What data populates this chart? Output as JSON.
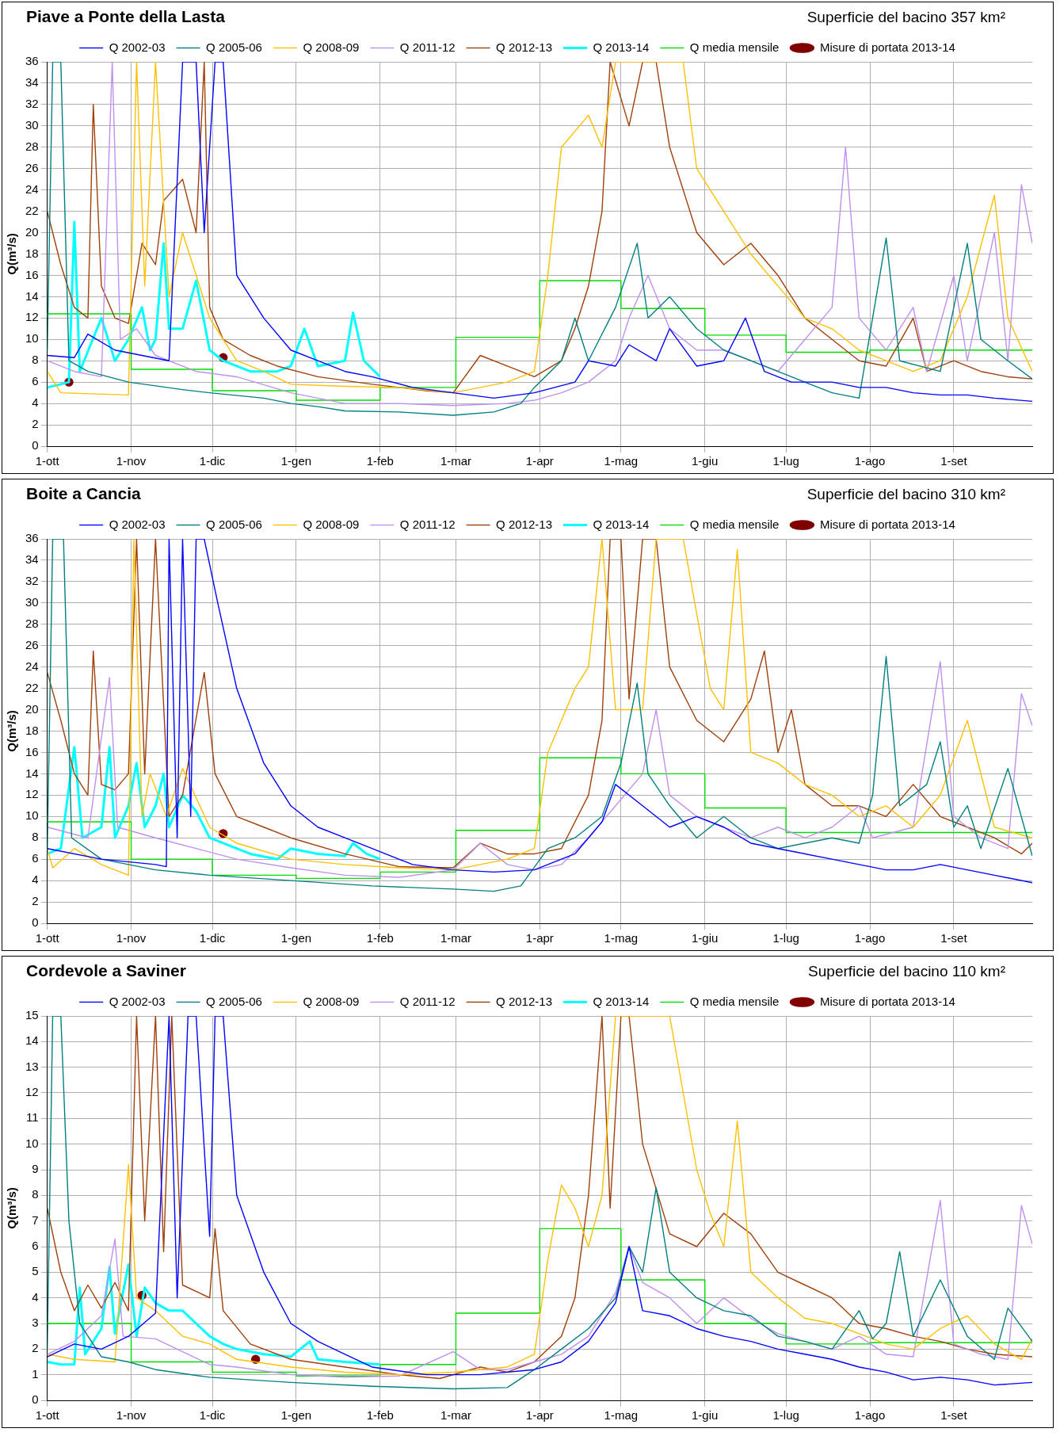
{
  "chart_data": [
    {
      "type": "line",
      "title": "Piave a Ponte della Lasta",
      "subtitle": "Superficie del bacino 357 km²",
      "ylabel": "Q(m³/s)",
      "xlim": [
        "2013-10-01",
        "2014-09-30"
      ],
      "xticks": [
        {
          "value": "2013-10-01",
          "label": "1-ott"
        },
        {
          "value": "2013-11-01",
          "label": "1-nov"
        },
        {
          "value": "2013-12-01",
          "label": "1-dic"
        },
        {
          "value": "2014-01-01",
          "label": "1-gen"
        },
        {
          "value": "2014-02-01",
          "label": "1-feb"
        },
        {
          "value": "2014-03-01",
          "label": "1-mar"
        },
        {
          "value": "2014-04-01",
          "label": "1-apr"
        },
        {
          "value": "2014-05-01",
          "label": "1-mag"
        },
        {
          "value": "2014-06-01",
          "label": "1-giu"
        },
        {
          "value": "2014-07-01",
          "label": "1-lug"
        },
        {
          "value": "2014-08-01",
          "label": "1-ago"
        },
        {
          "value": "2014-09-01",
          "label": "1-set"
        }
      ],
      "ylim": [
        0,
        36
      ],
      "yticks": [
        0,
        2,
        4,
        6,
        8,
        10,
        12,
        14,
        16,
        18,
        20,
        22,
        24,
        26,
        28,
        30,
        32,
        34,
        36
      ],
      "grid": true,
      "legend": "top",
      "marker": "none",
      "series": [
        {
          "name": "Q 2002-03",
          "color": "#0000ff",
          "x": [
            "2013-10-01",
            "2013-10-11",
            "2013-10-16",
            "2013-10-26",
            "2013-11-05",
            "2013-11-15",
            "2013-11-20",
            "2013-11-25",
            "2013-11-28",
            "2013-12-02",
            "2013-12-05",
            "2013-12-10",
            "2013-12-20",
            "2013-12-30",
            "2014-01-09",
            "2014-01-19",
            "2014-01-29",
            "2014-02-13",
            "2014-02-28",
            "2014-03-15",
            "2014-03-30",
            "2014-04-14",
            "2014-04-19",
            "2014-04-29",
            "2014-05-04",
            "2014-05-14",
            "2014-05-19",
            "2014-05-29",
            "2014-06-08",
            "2014-06-16",
            "2014-06-23",
            "2014-07-03",
            "2014-07-18",
            "2014-07-28",
            "2014-08-07",
            "2014-08-17",
            "2014-08-27",
            "2014-09-06",
            "2014-09-16",
            "2014-09-30"
          ],
          "values": [
            8.5,
            8.3,
            10.5,
            9,
            8.5,
            8,
            36,
            36,
            20,
            36,
            36,
            16,
            12,
            9,
            8,
            7,
            6.5,
            5.5,
            5,
            4.5,
            5,
            6,
            8,
            7.5,
            9.5,
            8,
            11,
            7.5,
            8,
            12,
            7,
            6,
            6,
            5.5,
            5.5,
            5,
            4.8,
            4.8,
            4.5,
            4.2
          ]
        },
        {
          "name": "Q 2005-06",
          "color": "#008080",
          "x": [
            "2013-10-01",
            "2013-10-03",
            "2013-10-06",
            "2013-10-09",
            "2013-10-16",
            "2013-10-31",
            "2013-11-20",
            "2013-11-30",
            "2013-12-20",
            "2013-12-30",
            "2014-01-09",
            "2014-01-19",
            "2014-02-08",
            "2014-02-28",
            "2014-03-15",
            "2014-03-25",
            "2014-03-30",
            "2014-04-09",
            "2014-04-14",
            "2014-04-19",
            "2014-04-29",
            "2014-05-07",
            "2014-05-11",
            "2014-05-19",
            "2014-05-29",
            "2014-06-08",
            "2014-06-18",
            "2014-06-28",
            "2014-07-18",
            "2014-07-28",
            "2014-08-07",
            "2014-08-12",
            "2014-08-27",
            "2014-09-06",
            "2014-09-11",
            "2014-09-21",
            "2014-09-30"
          ],
          "values": [
            9,
            36,
            36,
            8,
            7,
            6,
            5.3,
            5,
            4.5,
            4,
            3.7,
            3.3,
            3.2,
            2.9,
            3.2,
            4,
            5.5,
            8,
            12,
            8,
            13,
            19,
            12,
            14,
            11,
            9,
            8,
            7,
            5,
            4.5,
            19.5,
            8,
            7,
            19,
            10,
            8,
            6.3
          ]
        },
        {
          "name": "Q 2008-09",
          "color": "#ffc000",
          "x": [
            "2013-10-01",
            "2013-10-06",
            "2013-10-31",
            "2013-11-03",
            "2013-11-06",
            "2013-11-10",
            "2013-11-15",
            "2013-11-20",
            "2013-11-30",
            "2013-12-10",
            "2013-12-20",
            "2013-12-30",
            "2014-01-19",
            "2014-02-08",
            "2014-02-28",
            "2014-03-20",
            "2014-03-30",
            "2014-04-04",
            "2014-04-09",
            "2014-04-19",
            "2014-04-24",
            "2014-04-29",
            "2014-05-09",
            "2014-05-24",
            "2014-05-29",
            "2014-06-08",
            "2014-06-18",
            "2014-06-28",
            "2014-07-08",
            "2014-07-18",
            "2014-07-28",
            "2014-08-07",
            "2014-08-17",
            "2014-08-27",
            "2014-09-06",
            "2014-09-16",
            "2014-09-21",
            "2014-09-30"
          ],
          "values": [
            7,
            5,
            4.8,
            36,
            15,
            36,
            14,
            20,
            12,
            8,
            7,
            5.8,
            5.6,
            5.5,
            5,
            6,
            7,
            16,
            28,
            31,
            28,
            36,
            36,
            36,
            26,
            22,
            18,
            15,
            12,
            11,
            9,
            8,
            7,
            8,
            14,
            23.5,
            12,
            7
          ]
        },
        {
          "name": "Q 2011-12",
          "color": "#c090f0",
          "x": [
            "2013-10-01",
            "2013-10-11",
            "2013-10-21",
            "2013-10-25",
            "2013-10-28",
            "2013-11-03",
            "2013-11-10",
            "2013-11-25",
            "2013-12-10",
            "2013-12-30",
            "2014-01-19",
            "2014-02-08",
            "2014-02-28",
            "2014-03-20",
            "2014-03-30",
            "2014-04-09",
            "2014-04-19",
            "2014-04-29",
            "2014-05-04",
            "2014-05-11",
            "2014-05-19",
            "2014-05-29",
            "2014-06-08",
            "2014-06-18",
            "2014-06-28",
            "2014-07-08",
            "2014-07-18",
            "2014-07-23",
            "2014-07-28",
            "2014-08-07",
            "2014-08-17",
            "2014-08-22",
            "2014-09-01",
            "2014-09-06",
            "2014-09-16",
            "2014-09-21",
            "2014-09-26",
            "2014-09-30"
          ],
          "values": [
            8,
            7,
            6.5,
            36,
            10,
            11,
            8.5,
            7,
            6.5,
            5,
            4,
            4,
            3.8,
            4,
            4.3,
            5,
            6,
            8,
            12,
            16,
            11,
            9,
            9,
            8,
            7,
            10,
            13,
            28,
            12,
            9,
            13,
            7,
            16,
            8,
            20,
            8,
            24.5,
            19
          ]
        },
        {
          "name": "Q 2012-13",
          "color": "#a0400a",
          "x": [
            "2013-10-01",
            "2013-10-06",
            "2013-10-11",
            "2013-10-16",
            "2013-10-18",
            "2013-10-21",
            "2013-10-26",
            "2013-10-31",
            "2013-11-05",
            "2013-11-10",
            "2013-11-13",
            "2013-11-20",
            "2013-11-25",
            "2013-11-28",
            "2013-11-30",
            "2013-12-05",
            "2013-12-15",
            "2013-12-25",
            "2014-01-09",
            "2014-01-29",
            "2014-02-18",
            "2014-02-28",
            "2014-03-10",
            "2014-03-20",
            "2014-03-30",
            "2014-04-09",
            "2014-04-14",
            "2014-04-19",
            "2014-04-24",
            "2014-04-27",
            "2014-05-04",
            "2014-05-09",
            "2014-05-14",
            "2014-05-19",
            "2014-05-29",
            "2014-06-08",
            "2014-06-18",
            "2014-06-28",
            "2014-07-08",
            "2014-07-18",
            "2014-07-28",
            "2014-08-07",
            "2014-08-17",
            "2014-08-22",
            "2014-09-01",
            "2014-09-11",
            "2014-09-21",
            "2014-09-30"
          ],
          "values": [
            22,
            17,
            13,
            12,
            32,
            15,
            12,
            11.5,
            19,
            17,
            23,
            25,
            20,
            36,
            13,
            10,
            8.5,
            7.5,
            6.5,
            5.8,
            5.2,
            5,
            8.5,
            7.5,
            6.5,
            8,
            11,
            15,
            22,
            36,
            30,
            36,
            36,
            28,
            20,
            17,
            19,
            16,
            12,
            10,
            8,
            7.5,
            12,
            7,
            8,
            7,
            6.5,
            6.3
          ]
        },
        {
          "name": "Q 2013-14",
          "color": "#00ffff",
          "x": [
            "2013-10-01",
            "2013-10-06",
            "2013-10-09",
            "2013-10-11",
            "2013-10-13",
            "2013-10-21",
            "2013-10-26",
            "2013-10-31",
            "2013-11-05",
            "2013-11-08",
            "2013-11-10",
            "2013-11-13",
            "2013-11-15",
            "2013-11-20",
            "2013-11-25",
            "2013-11-30",
            "2013-12-05",
            "2013-12-15",
            "2013-12-25",
            "2013-12-30",
            "2014-01-04",
            "2014-01-09",
            "2014-01-19",
            "2014-01-22",
            "2014-01-26",
            "2014-02-01"
          ],
          "values": [
            5.5,
            5.8,
            6,
            21,
            7,
            12,
            8,
            10,
            13,
            9,
            10,
            19,
            11,
            11,
            15.5,
            9,
            8,
            7,
            7,
            7.5,
            11,
            7.5,
            8,
            12.5,
            8,
            6.5
          ]
        },
        {
          "name": "Q media mensile",
          "color": "#00dd00",
          "type": "step",
          "x": [
            "2013-10-01",
            "2013-11-01",
            "2013-12-01",
            "2014-01-01",
            "2014-02-01",
            "2014-03-01",
            "2014-04-01",
            "2014-05-01",
            "2014-06-01",
            "2014-07-01",
            "2014-08-01",
            "2014-09-01",
            "2014-09-30"
          ],
          "values": [
            12.1,
            12.4,
            7.2,
            5.2,
            4.3,
            5.5,
            10.2,
            15.5,
            12.9,
            10.4,
            8.8,
            9,
            9
          ]
        },
        {
          "name": "Misure di portata 2013-14",
          "color": "#800000",
          "type": "scatter",
          "marker": "circle",
          "x": [
            "2013-10-09",
            "2013-12-05"
          ],
          "values": [
            6,
            8.3
          ]
        }
      ]
    },
    {
      "type": "line",
      "title": "Boite a Cancia",
      "subtitle": "Superficie del bacino 310 km²",
      "ylabel": "Q(m³/s)",
      "xlim": [
        "2013-10-01",
        "2014-09-30"
      ],
      "xticks": [
        {
          "value": "2013-10-01",
          "label": "1-ott"
        },
        {
          "value": "2013-11-01",
          "label": "1-nov"
        },
        {
          "value": "2013-12-01",
          "label": "1-dic"
        },
        {
          "value": "2014-01-01",
          "label": "1-gen"
        },
        {
          "value": "2014-02-01",
          "label": "1-feb"
        },
        {
          "value": "2014-03-01",
          "label": "1-mar"
        },
        {
          "value": "2014-04-01",
          "label": "1-apr"
        },
        {
          "value": "2014-05-01",
          "label": "1-mag"
        },
        {
          "value": "2014-06-01",
          "label": "1-giu"
        },
        {
          "value": "2014-07-01",
          "label": "1-lug"
        },
        {
          "value": "2014-08-01",
          "label": "1-ago"
        },
        {
          "value": "2014-09-01",
          "label": "1-set"
        }
      ],
      "ylim": [
        0,
        36
      ],
      "yticks": [
        0,
        2,
        4,
        6,
        8,
        10,
        12,
        14,
        16,
        18,
        20,
        22,
        24,
        26,
        28,
        30,
        32,
        34,
        36
      ],
      "grid": true,
      "legend": "top",
      "marker": "none",
      "series": [
        {
          "name": "Q 2002-03",
          "color": "#0000ff",
          "x": [
            "2013-10-01",
            "2013-10-21",
            "2013-11-10",
            "2013-11-14",
            "2013-11-15",
            "2013-11-18",
            "2013-11-20",
            "2013-11-23",
            "2013-11-25",
            "2013-11-28",
            "2013-12-03",
            "2013-12-10",
            "2013-12-20",
            "2013-12-30",
            "2014-01-09",
            "2014-01-19",
            "2014-01-29",
            "2014-02-13",
            "2014-02-28",
            "2014-03-15",
            "2014-03-30",
            "2014-04-14",
            "2014-04-24",
            "2014-04-29",
            "2014-05-09",
            "2014-05-19",
            "2014-05-29",
            "2014-06-08",
            "2014-06-18",
            "2014-06-28",
            "2014-07-18",
            "2014-07-28",
            "2014-08-07",
            "2014-08-17",
            "2014-08-27",
            "2014-09-06",
            "2014-09-16",
            "2014-09-30"
          ],
          "values": [
            7,
            6,
            5.5,
            5.3,
            36,
            8,
            36,
            10,
            36,
            36,
            30,
            22,
            15,
            11,
            9,
            8,
            7,
            5.5,
            5,
            4.8,
            5,
            6.5,
            9.5,
            13,
            11,
            9,
            10,
            9,
            7.5,
            7,
            6,
            5.5,
            5,
            5,
            5.5,
            5,
            4.5,
            3.8
          ]
        },
        {
          "name": "Q 2005-06",
          "color": "#008080",
          "x": [
            "2013-10-01",
            "2013-10-03",
            "2013-10-07",
            "2013-10-10",
            "2013-10-21",
            "2013-11-10",
            "2013-11-30",
            "2013-12-30",
            "2014-01-29",
            "2014-02-28",
            "2014-03-15",
            "2014-03-25",
            "2014-04-04",
            "2014-04-14",
            "2014-04-24",
            "2014-05-01",
            "2014-05-07",
            "2014-05-11",
            "2014-05-19",
            "2014-05-29",
            "2014-06-08",
            "2014-06-18",
            "2014-06-28",
            "2014-07-18",
            "2014-07-28",
            "2014-08-02",
            "2014-08-07",
            "2014-08-12",
            "2014-08-22",
            "2014-08-27",
            "2014-09-01",
            "2014-09-06",
            "2014-09-11",
            "2014-09-21",
            "2014-09-30"
          ],
          "values": [
            6.8,
            36,
            36,
            8,
            6,
            5,
            4.5,
            4,
            3.5,
            3.2,
            3,
            3.5,
            7,
            8,
            10,
            15,
            22.5,
            14,
            11,
            8,
            10,
            8,
            7,
            8,
            7.5,
            12,
            25,
            11,
            13,
            17,
            9,
            11,
            7,
            14.5,
            6.3
          ]
        },
        {
          "name": "Q 2008-09",
          "color": "#ffc000",
          "x": [
            "2013-10-01",
            "2013-10-03",
            "2013-10-11",
            "2013-10-21",
            "2013-10-31",
            "2013-11-02",
            "2013-11-05",
            "2013-11-08",
            "2013-11-14",
            "2013-11-20",
            "2013-11-30",
            "2013-12-10",
            "2013-12-30",
            "2014-01-19",
            "2014-02-08",
            "2014-02-28",
            "2014-03-20",
            "2014-03-30",
            "2014-04-04",
            "2014-04-14",
            "2014-04-19",
            "2014-04-24",
            "2014-04-29",
            "2014-05-09",
            "2014-05-14",
            "2014-05-24",
            "2014-06-03",
            "2014-06-08",
            "2014-06-13",
            "2014-06-18",
            "2014-06-28",
            "2014-07-08",
            "2014-07-18",
            "2014-07-28",
            "2014-08-07",
            "2014-08-17",
            "2014-08-27",
            "2014-09-06",
            "2014-09-16",
            "2014-09-30"
          ],
          "values": [
            7,
            5.2,
            7,
            5.5,
            4.5,
            36,
            10,
            14,
            10,
            14.5,
            9,
            7.5,
            6,
            5.5,
            5.2,
            5,
            6,
            7,
            16,
            22,
            24,
            36,
            20,
            20,
            36,
            36,
            22,
            20,
            35,
            16,
            15,
            13,
            12,
            10,
            11,
            9,
            12,
            19,
            9,
            8
          ]
        },
        {
          "name": "Q 2011-12",
          "color": "#c090f0",
          "x": [
            "2013-10-01",
            "2013-10-16",
            "2013-10-24",
            "2013-10-27",
            "2013-11-10",
            "2013-11-25",
            "2013-12-10",
            "2013-12-30",
            "2014-01-19",
            "2014-02-08",
            "2014-02-28",
            "2014-03-10",
            "2014-03-20",
            "2014-03-30",
            "2014-04-09",
            "2014-04-19",
            "2014-04-29",
            "2014-05-09",
            "2014-05-14",
            "2014-05-19",
            "2014-05-29",
            "2014-06-08",
            "2014-06-18",
            "2014-06-28",
            "2014-07-08",
            "2014-07-18",
            "2014-07-28",
            "2014-08-02",
            "2014-08-17",
            "2014-08-27",
            "2014-09-01",
            "2014-09-11",
            "2014-09-21",
            "2014-09-26",
            "2014-09-30"
          ],
          "values": [
            9,
            8,
            23,
            9,
            8,
            7,
            6,
            5.2,
            4.5,
            4.3,
            5,
            7.5,
            5.5,
            5,
            5.5,
            8,
            11,
            14,
            20,
            12,
            10,
            9,
            8,
            9,
            8,
            9,
            11,
            8,
            9,
            24.5,
            10,
            8,
            7,
            21.5,
            18.5
          ]
        },
        {
          "name": "Q 2012-13",
          "color": "#a0400a",
          "x": [
            "2013-10-01",
            "2013-10-06",
            "2013-10-11",
            "2013-10-16",
            "2013-10-18",
            "2013-10-21",
            "2013-10-26",
            "2013-10-31",
            "2013-11-03",
            "2013-11-06",
            "2013-11-10",
            "2013-11-15",
            "2013-11-20",
            "2013-11-28",
            "2013-12-02",
            "2013-12-10",
            "2013-12-20",
            "2013-12-30",
            "2014-01-19",
            "2014-02-08",
            "2014-02-28",
            "2014-03-10",
            "2014-03-20",
            "2014-03-30",
            "2014-04-09",
            "2014-04-19",
            "2014-04-24",
            "2014-04-27",
            "2014-05-01",
            "2014-05-04",
            "2014-05-09",
            "2014-05-14",
            "2014-05-19",
            "2014-05-29",
            "2014-06-08",
            "2014-06-18",
            "2014-06-23",
            "2014-06-28",
            "2014-07-03",
            "2014-07-08",
            "2014-07-18",
            "2014-07-28",
            "2014-08-07",
            "2014-08-17",
            "2014-08-27",
            "2014-09-06",
            "2014-09-16",
            "2014-09-26",
            "2014-09-30"
          ],
          "values": [
            23.5,
            19,
            14,
            12,
            25.5,
            13,
            12.5,
            14,
            36,
            14,
            36,
            10,
            12,
            23.5,
            14,
            10,
            9,
            8,
            6.5,
            5.3,
            5.2,
            7.5,
            6.5,
            6.5,
            7,
            12,
            19,
            36,
            36,
            21,
            36,
            36,
            24,
            19,
            17,
            21,
            25.5,
            16,
            20,
            13,
            11,
            11,
            10,
            13,
            10,
            9,
            8,
            6.5,
            7.5
          ]
        },
        {
          "name": "Q 2013-14",
          "color": "#00ffff",
          "x": [
            "2013-10-01",
            "2013-10-06",
            "2013-10-11",
            "2013-10-14",
            "2013-10-21",
            "2013-10-24",
            "2013-10-26",
            "2013-10-31",
            "2013-11-03",
            "2013-11-06",
            "2013-11-10",
            "2013-11-13",
            "2013-11-15",
            "2013-11-20",
            "2013-11-25",
            "2013-11-30",
            "2013-12-05",
            "2013-12-15",
            "2013-12-25",
            "2013-12-30",
            "2014-01-09",
            "2014-01-19",
            "2014-01-22",
            "2014-01-27",
            "2014-02-01"
          ],
          "values": [
            6.5,
            7,
            16.5,
            8,
            9,
            16.5,
            8,
            11,
            15,
            9,
            11,
            14,
            9,
            12,
            10.5,
            8,
            7.5,
            6.5,
            6,
            7,
            6.5,
            6.3,
            7.5,
            6.5,
            6
          ]
        },
        {
          "name": "Q media mensile",
          "color": "#00dd00",
          "type": "step",
          "x": [
            "2013-10-01",
            "2013-11-01",
            "2013-12-01",
            "2014-01-01",
            "2014-02-01",
            "2014-03-01",
            "2014-04-01",
            "2014-05-01",
            "2014-06-01",
            "2014-07-01",
            "2014-08-01",
            "2014-09-01",
            "2014-09-30"
          ],
          "values": [
            10.1,
            9.5,
            6,
            4.5,
            4.2,
            4.8,
            8.7,
            15.5,
            14,
            10.8,
            8.5,
            8.5,
            8.5
          ]
        },
        {
          "name": "Misure di portata 2013-14",
          "color": "#800000",
          "type": "scatter",
          "marker": "circle",
          "x": [
            "2013-12-05"
          ],
          "values": [
            8.4
          ]
        }
      ]
    },
    {
      "type": "line",
      "title": "Cordevole a Saviner",
      "subtitle": "Superficie del bacino 110 km²",
      "ylabel": "Q(m³/s)",
      "xlim": [
        "2013-10-01",
        "2014-09-30"
      ],
      "xticks": [
        {
          "value": "2013-10-01",
          "label": "1-ott"
        },
        {
          "value": "2013-11-01",
          "label": "1-nov"
        },
        {
          "value": "2013-12-01",
          "label": "1-dic"
        },
        {
          "value": "2014-01-01",
          "label": "1-gen"
        },
        {
          "value": "2014-02-01",
          "label": "1-feb"
        },
        {
          "value": "2014-03-01",
          "label": "1-mar"
        },
        {
          "value": "2014-04-01",
          "label": "1-apr"
        },
        {
          "value": "2014-05-01",
          "label": "1-mag"
        },
        {
          "value": "2014-06-01",
          "label": "1-giu"
        },
        {
          "value": "2014-07-01",
          "label": "1-lug"
        },
        {
          "value": "2014-08-01",
          "label": "1-ago"
        },
        {
          "value": "2014-09-01",
          "label": "1-set"
        }
      ],
      "ylim": [
        0,
        15
      ],
      "yticks": [
        0,
        1,
        2,
        3,
        4,
        5,
        6,
        7,
        8,
        9,
        10,
        11,
        12,
        13,
        14,
        15
      ],
      "grid": true,
      "legend": "top",
      "marker": "none",
      "series": [
        {
          "name": "Q 2002-03",
          "color": "#0000ff",
          "x": [
            "2013-10-01",
            "2013-10-11",
            "2013-10-21",
            "2013-10-31",
            "2013-11-10",
            "2013-11-15",
            "2013-11-18",
            "2013-11-22",
            "2013-11-25",
            "2013-11-30",
            "2013-12-02",
            "2013-12-05",
            "2013-12-10",
            "2013-12-20",
            "2013-12-30",
            "2014-01-09",
            "2014-01-19",
            "2014-01-29",
            "2014-02-18",
            "2014-03-10",
            "2014-03-30",
            "2014-04-09",
            "2014-04-19",
            "2014-04-29",
            "2014-05-04",
            "2014-05-09",
            "2014-05-19",
            "2014-05-29",
            "2014-06-08",
            "2014-06-18",
            "2014-06-28",
            "2014-07-08",
            "2014-07-18",
            "2014-07-28",
            "2014-08-07",
            "2014-08-17",
            "2014-08-27",
            "2014-09-06",
            "2014-09-16",
            "2014-09-30"
          ],
          "values": [
            1.7,
            2.2,
            2,
            2.5,
            3.4,
            15,
            4,
            15,
            15,
            6.4,
            15,
            15,
            8,
            5,
            3,
            2.3,
            1.8,
            1.3,
            1,
            1,
            1.2,
            1.5,
            2.3,
            3.8,
            6,
            3.5,
            3.3,
            2.8,
            2.5,
            2.3,
            2,
            1.8,
            1.6,
            1.3,
            1.1,
            0.8,
            0.9,
            0.8,
            0.6,
            0.7
          ]
        },
        {
          "name": "Q 2005-06",
          "color": "#008080",
          "x": [
            "2013-10-01",
            "2013-10-03",
            "2013-10-06",
            "2013-10-09",
            "2013-10-13",
            "2013-10-21",
            "2013-10-31",
            "2013-11-10",
            "2013-11-30",
            "2013-12-30",
            "2014-01-29",
            "2014-02-28",
            "2014-03-20",
            "2014-03-30",
            "2014-04-09",
            "2014-04-19",
            "2014-04-29",
            "2014-05-04",
            "2014-05-09",
            "2014-05-14",
            "2014-05-19",
            "2014-05-29",
            "2014-06-08",
            "2014-06-18",
            "2014-06-28",
            "2014-07-08",
            "2014-07-18",
            "2014-07-28",
            "2014-08-02",
            "2014-08-07",
            "2014-08-12",
            "2014-08-17",
            "2014-08-27",
            "2014-09-06",
            "2014-09-16",
            "2014-09-21",
            "2014-09-30"
          ],
          "values": [
            2,
            15,
            15,
            7,
            3,
            1.7,
            1.5,
            1.2,
            0.9,
            0.7,
            0.55,
            0.45,
            0.5,
            1.2,
            2,
            2.8,
            4,
            6,
            5,
            8.3,
            5,
            4,
            3.5,
            3.3,
            2.5,
            2.3,
            2,
            3.5,
            2.4,
            3,
            5.8,
            2.5,
            4.7,
            2.5,
            1.6,
            3.6,
            2.3
          ]
        },
        {
          "name": "Q 2008-09",
          "color": "#ffc000",
          "x": [
            "2013-10-01",
            "2013-10-11",
            "2013-10-26",
            "2013-10-31",
            "2013-11-03",
            "2013-11-10",
            "2013-11-20",
            "2013-11-30",
            "2013-12-10",
            "2013-12-30",
            "2014-01-19",
            "2014-02-08",
            "2014-02-28",
            "2014-03-20",
            "2014-03-30",
            "2014-04-04",
            "2014-04-09",
            "2014-04-14",
            "2014-04-19",
            "2014-04-24",
            "2014-04-29",
            "2014-05-04",
            "2014-05-14",
            "2014-05-19",
            "2014-05-29",
            "2014-06-03",
            "2014-06-08",
            "2014-06-13",
            "2014-06-18",
            "2014-06-28",
            "2014-07-08",
            "2014-07-18",
            "2014-07-28",
            "2014-08-07",
            "2014-08-17",
            "2014-08-27",
            "2014-09-06",
            "2014-09-16",
            "2014-09-26",
            "2014-09-30"
          ],
          "values": [
            1.8,
            1.6,
            1.5,
            9.2,
            4,
            3.5,
            2.5,
            2.2,
            1.6,
            1.3,
            1.1,
            1,
            1.1,
            1.3,
            1.8,
            5.5,
            8.4,
            7.5,
            6,
            8,
            15,
            15,
            15,
            15,
            9,
            7.3,
            6,
            10.9,
            5,
            4,
            3.2,
            3,
            2.6,
            2.2,
            2,
            2.8,
            3.3,
            2.2,
            1.6,
            2.4
          ]
        },
        {
          "name": "Q 2011-12",
          "color": "#c090f0",
          "x": [
            "2013-10-01",
            "2013-10-11",
            "2013-10-21",
            "2013-10-26",
            "2013-10-29",
            "2013-11-10",
            "2013-11-20",
            "2013-11-30",
            "2013-12-10",
            "2013-12-30",
            "2014-01-19",
            "2014-02-08",
            "2014-02-28",
            "2014-03-10",
            "2014-03-20",
            "2014-03-30",
            "2014-04-09",
            "2014-04-19",
            "2014-04-29",
            "2014-05-04",
            "2014-05-09",
            "2014-05-19",
            "2014-05-29",
            "2014-06-08",
            "2014-06-18",
            "2014-06-28",
            "2014-07-08",
            "2014-07-18",
            "2014-07-28",
            "2014-08-07",
            "2014-08-17",
            "2014-08-27",
            "2014-09-01",
            "2014-09-11",
            "2014-09-21",
            "2014-09-26",
            "2014-09-30"
          ],
          "values": [
            1.8,
            2.3,
            3.3,
            6.3,
            2.5,
            2.4,
            1.9,
            1.4,
            1.3,
            1,
            0.9,
            0.95,
            1.9,
            1.2,
            1.2,
            1.5,
            1.8,
            2.5,
            4.2,
            6,
            4.6,
            4,
            3,
            4,
            3.2,
            2.6,
            2.3,
            2,
            2.5,
            1.8,
            1.7,
            7.8,
            2.2,
            1.8,
            1.6,
            7.6,
            6.1
          ]
        },
        {
          "name": "Q 2012-13",
          "color": "#a0400a",
          "x": [
            "2013-10-01",
            "2013-10-06",
            "2013-10-11",
            "2013-10-16",
            "2013-10-21",
            "2013-10-26",
            "2013-10-31",
            "2013-11-03",
            "2013-11-06",
            "2013-11-10",
            "2013-11-13",
            "2013-11-16",
            "2013-11-20",
            "2013-11-30",
            "2013-12-02",
            "2013-12-05",
            "2013-12-15",
            "2013-12-30",
            "2014-01-19",
            "2014-02-08",
            "2014-02-23",
            "2014-03-10",
            "2014-03-20",
            "2014-03-30",
            "2014-04-09",
            "2014-04-14",
            "2014-04-19",
            "2014-04-24",
            "2014-04-27",
            "2014-05-01",
            "2014-05-04",
            "2014-05-09",
            "2014-05-19",
            "2014-05-29",
            "2014-06-08",
            "2014-06-18",
            "2014-06-28",
            "2014-07-08",
            "2014-07-18",
            "2014-07-28",
            "2014-08-07",
            "2014-08-17",
            "2014-08-27",
            "2014-09-06",
            "2014-09-16",
            "2014-09-30"
          ],
          "values": [
            7.5,
            5,
            3.5,
            4.5,
            3.6,
            4.6,
            3.5,
            15,
            7,
            15,
            5.8,
            15,
            4.5,
            4,
            6.7,
            3.5,
            2.2,
            1.6,
            1.3,
            1,
            0.85,
            1.3,
            1.1,
            1.5,
            2.5,
            4,
            8,
            15,
            7.5,
            15,
            15,
            10,
            6.5,
            6,
            7.3,
            6.5,
            5,
            4.5,
            4,
            3,
            2.8,
            2.5,
            2.3,
            2,
            1.8,
            1.7
          ]
        },
        {
          "name": "Q 2013-14",
          "color": "#00ffff",
          "x": [
            "2013-10-01",
            "2013-10-06",
            "2013-10-11",
            "2013-10-13",
            "2013-10-15",
            "2013-10-21",
            "2013-10-24",
            "2013-10-26",
            "2013-10-31",
            "2013-11-03",
            "2013-11-06",
            "2013-11-10",
            "2013-11-15",
            "2013-11-20",
            "2013-11-30",
            "2013-12-05",
            "2013-12-10",
            "2013-12-20",
            "2013-12-30",
            "2014-01-06",
            "2014-01-09",
            "2014-01-19",
            "2014-02-01"
          ],
          "values": [
            1.5,
            1.4,
            1.4,
            4.4,
            1.8,
            2.8,
            5.2,
            2.6,
            5.3,
            2.5,
            4.4,
            3.8,
            3.5,
            3.5,
            2.5,
            2.2,
            2,
            1.8,
            1.7,
            2.3,
            1.6,
            1.5,
            1.4
          ]
        },
        {
          "name": "Q media mensile",
          "color": "#00dd00",
          "type": "step",
          "x": [
            "2013-10-01",
            "2013-11-01",
            "2013-12-01",
            "2014-01-01",
            "2014-02-01",
            "2014-03-01",
            "2014-04-01",
            "2014-05-01",
            "2014-06-01",
            "2014-07-01",
            "2014-08-01",
            "2014-09-01",
            "2014-09-30"
          ],
          "values": [
            3.1,
            3,
            1.5,
            1.1,
            0.95,
            1.4,
            3.4,
            6.7,
            4.7,
            3,
            2.2,
            2.25,
            2.25
          ]
        },
        {
          "name": "Misure di portata 2013-14",
          "color": "#800000",
          "type": "scatter",
          "marker": "circle",
          "x": [
            "2013-11-05",
            "2013-12-17"
          ],
          "values": [
            4.1,
            1.6
          ]
        }
      ]
    }
  ]
}
